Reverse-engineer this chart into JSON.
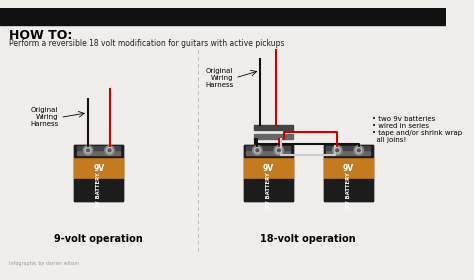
{
  "bg_color": "#f0eeeb",
  "title": "HOW TO:",
  "subtitle": "Perform a reversible 18 volt modification for guitars with active pickups",
  "title_fontsize": 9,
  "subtitle_fontsize": 5.5,
  "label_9v": "9-volt operation",
  "label_18v": "18-volt operation",
  "label_wiring_9v": "Original\nWiring\nHarness",
  "label_wiring_18v": "Original\nWiring\nHarness",
  "label_bullets": "• two 9v batteries\n• wired in series\n• tape and/or shrink wrap\n  all joins!",
  "battery_orange": "#c47a1e",
  "battery_black": "#1c1c1c",
  "connector_gray": "#666666",
  "connector_dark": "#444444",
  "knob_gray": "#888888",
  "knob_light": "#bbbbbb",
  "wire_red": "#cc0000",
  "wire_black": "#111111",
  "wire_white": "#cccccc",
  "divider_color": "#bbbbbb",
  "status_bar_color": "#111111",
  "footer_color": "#999999"
}
